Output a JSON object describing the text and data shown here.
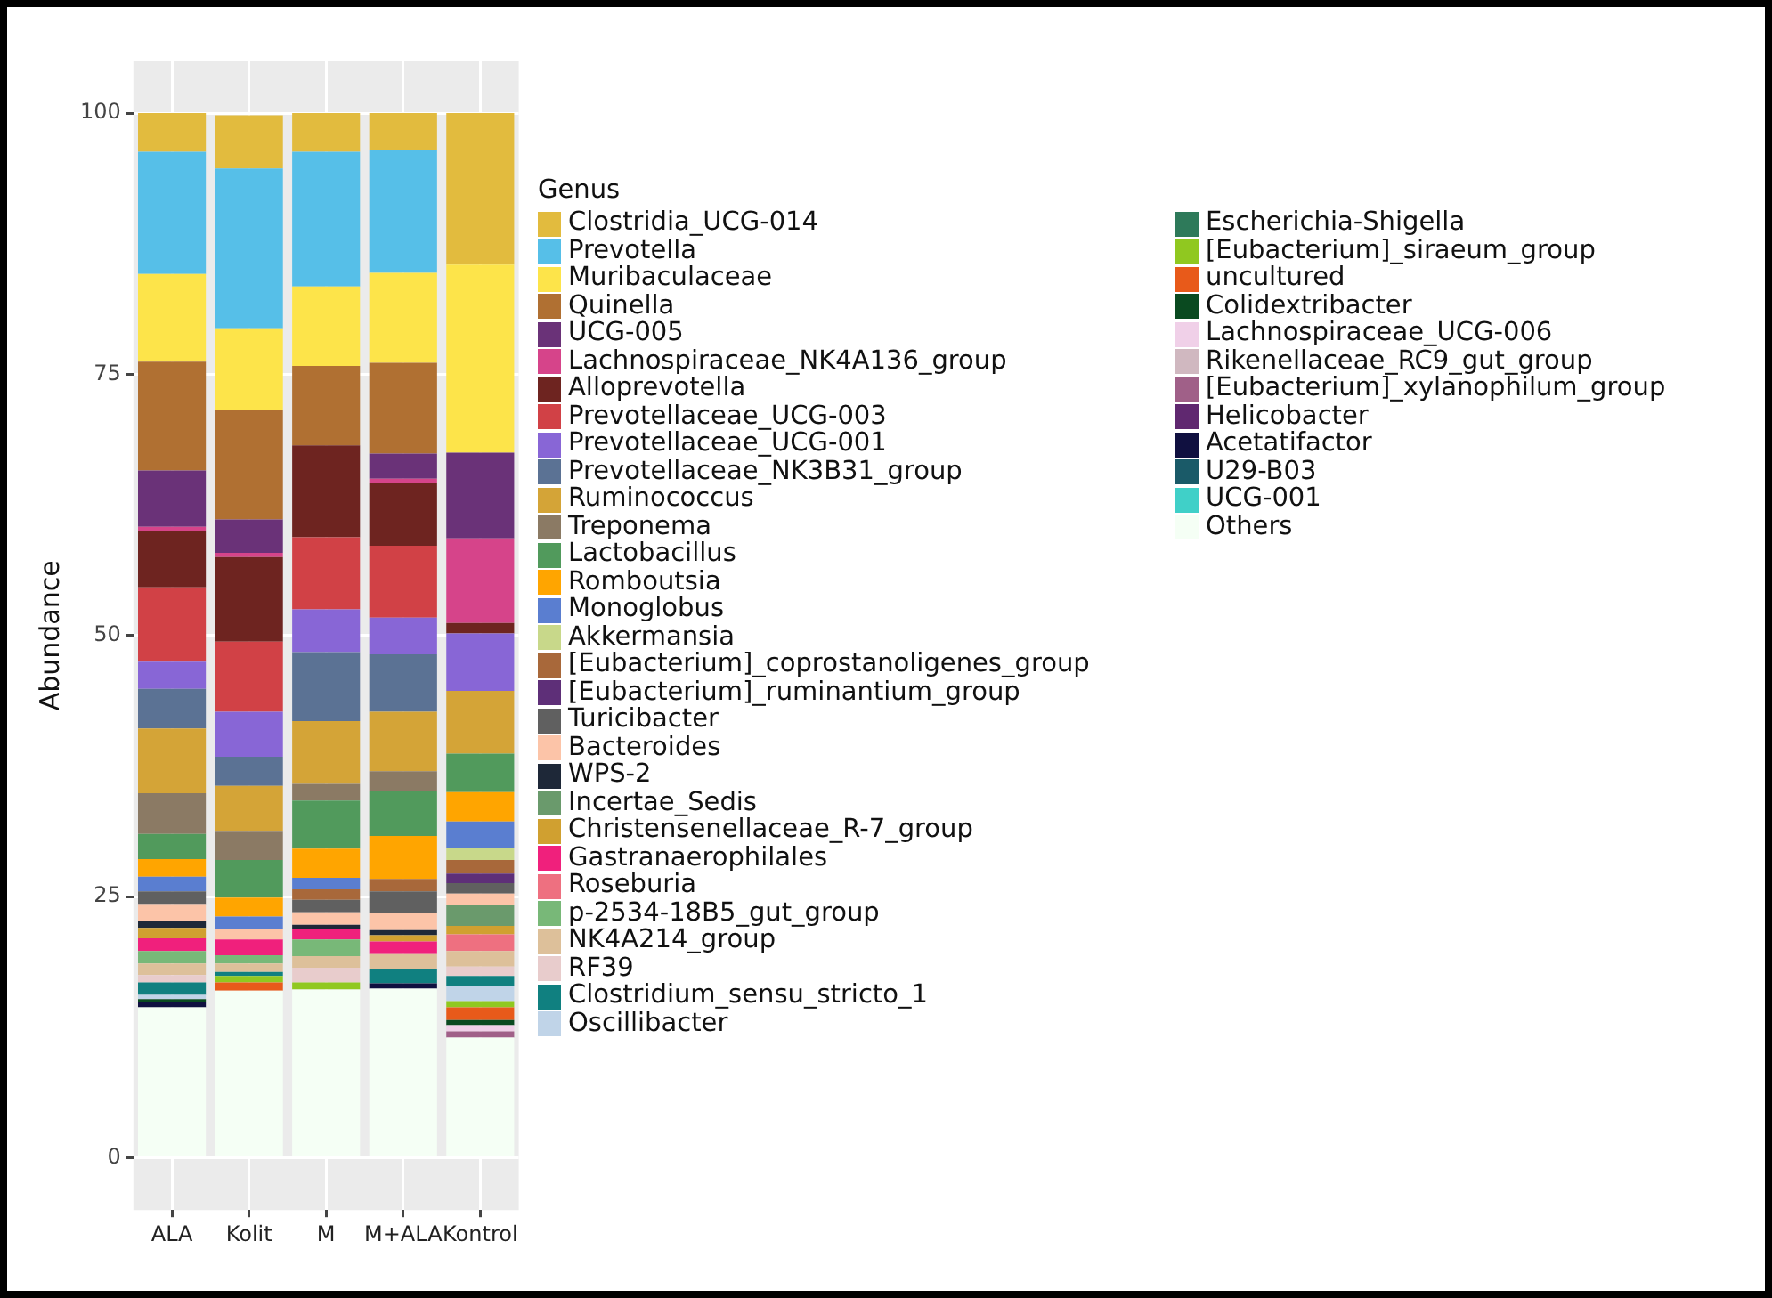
{
  "chart_data": {
    "type": "bar",
    "stacked": true,
    "ylabel": "Abundance",
    "legend_title": "Genus",
    "legend": "right",
    "grid": true,
    "categories": [
      "ALA",
      "Kolit",
      "M",
      "M+ALA",
      "Kontrol"
    ],
    "ylim": [
      -5,
      105
    ],
    "yticks": [
      0,
      25,
      50,
      75,
      100
    ],
    "series": [
      {
        "name": "Others",
        "color": "#f5fff5",
        "values": [
          14.4,
          16.0,
          16.1,
          16.2,
          11.5
        ]
      },
      {
        "name": "UCG-001",
        "color": "#40d0c8",
        "values": [
          0,
          0,
          0,
          0,
          0
        ]
      },
      {
        "name": "U29-B03",
        "color": "#1a5a68",
        "values": [
          0,
          0,
          0,
          0,
          0
        ]
      },
      {
        "name": "Acetatifactor",
        "color": "#101040",
        "values": [
          0.5,
          0,
          0,
          0.5,
          0
        ]
      },
      {
        "name": "Helicobacter",
        "color": "#602870",
        "values": [
          0,
          0,
          0,
          0,
          0
        ]
      },
      {
        "name": "[Eubacterium]_xylanophilum_group",
        "color": "#a06088",
        "values": [
          0,
          0,
          0,
          0,
          0.6
        ]
      },
      {
        "name": "Rikenellaceae_RC9_gut_group",
        "color": "#d0b8c0",
        "values": [
          0,
          0,
          0,
          0,
          0
        ]
      },
      {
        "name": "Lachnospiraceae_UCG-006",
        "color": "#f0d0e8",
        "values": [
          0,
          0,
          0,
          0,
          0.6
        ]
      },
      {
        "name": "Colidextribacter",
        "color": "#0a4a20",
        "values": [
          0.3,
          0,
          0,
          0,
          0.5
        ]
      },
      {
        "name": "uncultured",
        "color": "#e85a1a",
        "values": [
          0,
          0.8,
          0,
          0,
          1.2
        ]
      },
      {
        "name": "[Eubacterium]_siraeum_group",
        "color": "#90c820",
        "values": [
          0,
          0.6,
          0.7,
          0,
          0.6
        ]
      },
      {
        "name": "Escherichia-Shigella",
        "color": "#2e7a5a",
        "values": [
          0,
          0,
          0,
          0,
          0
        ]
      },
      {
        "name": "Oscillibacter",
        "color": "#c0d4e8",
        "values": [
          0.4,
          0,
          0,
          0,
          1.5
        ]
      },
      {
        "name": "Clostridium_sensu_stricto_1",
        "color": "#108080",
        "values": [
          1.2,
          0.4,
          0,
          1.4,
          0.9
        ]
      },
      {
        "name": "RF39",
        "color": "#e8cccc",
        "values": [
          0.7,
          0,
          1.4,
          0,
          0.9
        ]
      },
      {
        "name": "NK4A214_group",
        "color": "#ddc09a",
        "values": [
          1.1,
          0.8,
          1.1,
          1.4,
          1.5
        ]
      },
      {
        "name": "p-2534-18B5_gut_group",
        "color": "#78b878",
        "values": [
          1.2,
          0.8,
          1.6,
          0,
          0
        ]
      },
      {
        "name": "Roseburia",
        "color": "#ee7080",
        "values": [
          0,
          0,
          0,
          0,
          1.6
        ]
      },
      {
        "name": "Gastranaerophilales",
        "color": "#f0207c",
        "values": [
          1.2,
          1.5,
          1.0,
          1.2,
          0
        ]
      },
      {
        "name": "Christensenellaceae_R-7_group",
        "color": "#d0a030",
        "values": [
          1.0,
          0,
          0,
          0.6,
          0.8
        ]
      },
      {
        "name": "Incertae_Sedis",
        "color": "#6a9a6c",
        "values": [
          0,
          0,
          0,
          0,
          2.0
        ]
      },
      {
        "name": "WPS-2",
        "color": "#1e2838",
        "values": [
          0.7,
          0,
          0.4,
          0.5,
          0
        ]
      },
      {
        "name": "Bacteroides",
        "color": "#fcc4a8",
        "values": [
          1.6,
          1.0,
          1.2,
          1.6,
          1.1
        ]
      },
      {
        "name": "Turicibacter",
        "color": "#606060",
        "values": [
          1.2,
          0,
          1.2,
          2.1,
          1.0
        ]
      },
      {
        "name": "[Eubacterium]_ruminantium_group",
        "color": "#5e2f78",
        "values": [
          0,
          0,
          0,
          0,
          0.9
        ]
      },
      {
        "name": "[Eubacterium]_coprostanoligenes_group",
        "color": "#a8683a",
        "values": [
          0,
          0,
          1.0,
          1.2,
          1.3
        ]
      },
      {
        "name": "Akkermansia",
        "color": "#c8d88a",
        "values": [
          0,
          0,
          0,
          0,
          1.2
        ]
      },
      {
        "name": "Monoglobus",
        "color": "#5a7ed0",
        "values": [
          1.4,
          1.2,
          1.1,
          0,
          2.5
        ]
      },
      {
        "name": "Romboutsia",
        "color": "#ffa500",
        "values": [
          1.7,
          1.8,
          2.8,
          4.1,
          2.8
        ]
      },
      {
        "name": "Lactobacillus",
        "color": "#519a5c",
        "values": [
          2.4,
          3.6,
          4.6,
          4.3,
          3.7
        ]
      },
      {
        "name": "Treponema",
        "color": "#8b7a64",
        "values": [
          3.9,
          2.8,
          1.6,
          1.9,
          0
        ]
      },
      {
        "name": "Ruminococcus",
        "color": "#d4a437",
        "values": [
          6.2,
          4.3,
          6.0,
          5.7,
          6.0
        ]
      },
      {
        "name": "Prevotellaceae_NK3B31_group",
        "color": "#5b7294",
        "values": [
          3.8,
          2.8,
          6.6,
          5.5,
          0
        ]
      },
      {
        "name": "Prevotellaceae_UCG-001",
        "color": "#8866d6",
        "values": [
          2.6,
          4.3,
          4.1,
          3.5,
          5.5
        ]
      },
      {
        "name": "Prevotellaceae_UCG-003",
        "color": "#d14146",
        "values": [
          7.1,
          6.7,
          6.9,
          6.9,
          0
        ]
      },
      {
        "name": "Alloprevotella",
        "color": "#6e2420",
        "values": [
          5.4,
          8.1,
          8.8,
          6.0,
          1.0
        ]
      },
      {
        "name": "Lachnospiraceae_NK4A136_group",
        "color": "#d6448a",
        "values": [
          0.4,
          0.4,
          0,
          0.4,
          8.1
        ]
      },
      {
        "name": "UCG-005",
        "color": "#6a3278",
        "values": [
          5.4,
          3.2,
          0,
          2.4,
          8.2
        ]
      },
      {
        "name": "Quinella",
        "color": "#b07032",
        "values": [
          10.4,
          10.5,
          7.6,
          8.7,
          0
        ]
      },
      {
        "name": "Muribaculaceae",
        "color": "#fde44a",
        "values": [
          8.4,
          7.8,
          7.6,
          8.6,
          18.0
        ]
      },
      {
        "name": "Prevotella",
        "color": "#56bfe8",
        "values": [
          11.7,
          15.3,
          12.9,
          11.8,
          0
        ]
      },
      {
        "name": "Clostridia_UCG-014",
        "color": "#e2bb3e",
        "values": [
          3.7,
          5.1,
          3.7,
          3.5,
          14.5
        ]
      }
    ]
  }
}
